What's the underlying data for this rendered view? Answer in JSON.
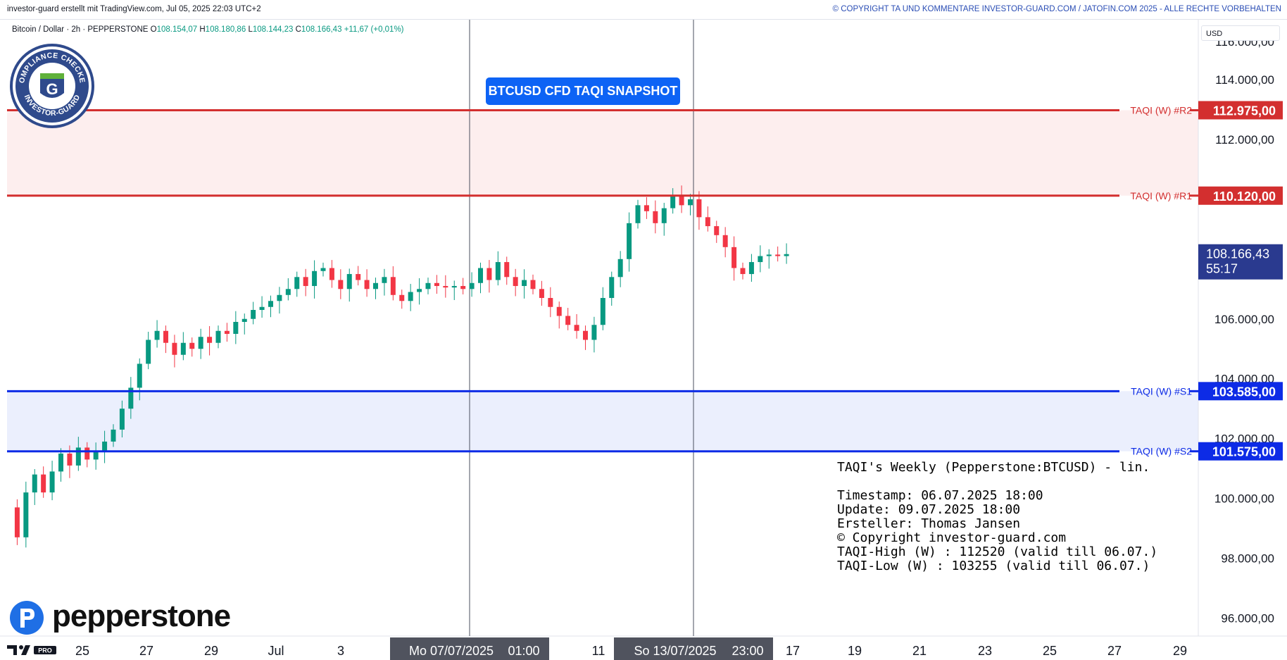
{
  "header": {
    "left_text": "investor-guard erstellt mit TradingView.com, Jul 05, 2025 22:03 UTC+2",
    "right_text": "© COPYRIGHT TA UND KOMMENTARE INVESTOR-GUARD.COM / JATOFIN.COM 2025 - ALLE RECHTE VORBEHALTEN"
  },
  "legend": {
    "symbol": "Bitcoin / Dollar · 2h · PEPPERSTONE",
    "o_label": "O",
    "o_value": "108.154,07",
    "h_label": "H",
    "h_value": "108.180,86",
    "l_label": "L",
    "l_value": "108.144,23",
    "c_label": "C",
    "c_value": "108.166,43",
    "change": "+11,67 (+0,01%)"
  },
  "badge": {
    "text_top": "COMPLIANCE CHECKED",
    "text_bottom": "INVESTOR-GUARD",
    "letter": "G"
  },
  "snapshot_label": "BTCUSD CFD TAQI SNAPSHOT",
  "info": {
    "title": "TAQI's Weekly (Pepperstone:BTCUSD) - lin.",
    "timestamp": "Timestamp: 06.07.2025 18:00",
    "update": "Update: 09.07.2025 18:00",
    "author": "Ersteller: Thomas Jansen",
    "copyright": "© Copyright investor-guard.com",
    "taqi_high": "TAQI-High (W) : 112520 (valid till 06.07.)",
    "taqi_low": "TAQI-Low (W) : 103255 (valid till 06.07.)"
  },
  "currency": "USD",
  "broker_logo": "pepperstone",
  "colors": {
    "resistance": "#d32f2f",
    "support": "#0d2be6",
    "resistance_zone": "#fdeeee",
    "support_zone": "#ebeffd",
    "up_candle": "#089981",
    "down_candle": "#f23645",
    "price_label": "#2a3a8f",
    "snapshot_bg": "#0d63f5"
  },
  "chart_data": {
    "type": "candlestick",
    "y_axis_ticks": [
      "114.000,00",
      "112.000,00",
      "106.000,00",
      "104.000,00",
      "102.000,00",
      "100.000,00",
      "98.000,00",
      "96.000,00"
    ],
    "x_axis_ticks": [
      "25",
      "27",
      "29",
      "Jul",
      "3",
      "11",
      "17",
      "19",
      "21",
      "23",
      "25",
      "27",
      "29"
    ],
    "ylim": [
      95400,
      116000
    ],
    "levels": [
      {
        "label": "TAQI (W) #R2",
        "value": 112975,
        "value_text": "112.975,00",
        "kind": "resistance"
      },
      {
        "label": "TAQI (W) #R1",
        "value": 110120,
        "value_text": "110.120,00",
        "kind": "resistance"
      },
      {
        "label": "TAQI (W) #S1",
        "value": 103585,
        "value_text": "103.585,00",
        "kind": "support"
      },
      {
        "label": "TAQI (W) #S2",
        "value": 101575,
        "value_text": "101.575,00",
        "kind": "support"
      }
    ],
    "last_price": {
      "value": 108166.43,
      "text": "108.166,43",
      "countdown": "55:17"
    },
    "vertical_markers": [
      {
        "label": "Mo 07/07/2025",
        "time": "01:00"
      },
      {
        "label": "So 13/07/2025",
        "time": "23:00"
      }
    ],
    "ohlc_path": [
      [
        0,
        99700
      ],
      [
        0.3,
        98700
      ],
      [
        0.6,
        100200
      ],
      [
        1.0,
        100800
      ],
      [
        1.4,
        100200
      ],
      [
        1.8,
        100900
      ],
      [
        2.2,
        101500
      ],
      [
        2.6,
        101100
      ],
      [
        3.0,
        101700
      ],
      [
        3.4,
        101300
      ],
      [
        3.8,
        101600
      ],
      [
        4.1,
        101900
      ],
      [
        4.4,
        102300
      ],
      [
        4.8,
        103000
      ],
      [
        5.1,
        103700
      ],
      [
        5.4,
        104500
      ],
      [
        5.7,
        105300
      ],
      [
        6.0,
        105600
      ],
      [
        6.4,
        105200
      ],
      [
        6.8,
        104800
      ],
      [
        7.2,
        105200
      ],
      [
        7.6,
        105000
      ],
      [
        8.0,
        105400
      ],
      [
        8.4,
        105200
      ],
      [
        8.8,
        105600
      ],
      [
        9.2,
        105500
      ],
      [
        9.6,
        105900
      ],
      [
        10.0,
        106000
      ],
      [
        10.5,
        106300
      ],
      [
        11.0,
        106400
      ],
      [
        11.5,
        106600
      ],
      [
        12.0,
        106800
      ],
      [
        12.5,
        107000
      ],
      [
        13.0,
        107400
      ],
      [
        13.5,
        107100
      ],
      [
        14.0,
        107600
      ],
      [
        14.5,
        107700
      ],
      [
        15.0,
        107300
      ],
      [
        15.5,
        107000
      ],
      [
        16.0,
        107500
      ],
      [
        16.5,
        107300
      ],
      [
        17.0,
        107000
      ],
      [
        17.5,
        107200
      ],
      [
        18.0,
        107400
      ],
      [
        18.5,
        106800
      ],
      [
        19.0,
        106600
      ],
      [
        19.5,
        106900
      ],
      [
        20.0,
        107000
      ],
      [
        20.5,
        107200
      ],
      [
        21.0,
        107100
      ],
      [
        21.5,
        107050
      ],
      [
        22.0,
        107100
      ],
      [
        22.5,
        107000
      ],
      [
        23.0,
        107200
      ],
      [
        23.5,
        107700
      ],
      [
        24.0,
        107300
      ],
      [
        24.5,
        107900
      ],
      [
        25.0,
        107400
      ],
      [
        25.5,
        107100
      ],
      [
        26.0,
        107300
      ],
      [
        26.5,
        107000
      ],
      [
        27.0,
        106700
      ],
      [
        27.5,
        106400
      ],
      [
        28.0,
        106100
      ],
      [
        28.5,
        105800
      ],
      [
        29.0,
        105600
      ],
      [
        29.5,
        105300
      ],
      [
        30.0,
        105800
      ],
      [
        30.5,
        106700
      ],
      [
        31.0,
        107400
      ],
      [
        31.5,
        108000
      ],
      [
        32.0,
        109200
      ],
      [
        32.5,
        109800
      ],
      [
        33.0,
        109600
      ],
      [
        33.5,
        109200
      ],
      [
        34.0,
        109700
      ],
      [
        34.5,
        110100
      ],
      [
        35.0,
        109800
      ],
      [
        35.5,
        110000
      ],
      [
        36.0,
        109400
      ],
      [
        36.5,
        109100
      ],
      [
        37.0,
        108800
      ],
      [
        37.5,
        108400
      ],
      [
        38.0,
        107700
      ],
      [
        38.5,
        107500
      ],
      [
        39.0,
        107900
      ],
      [
        39.5,
        108100
      ],
      [
        40.0,
        108150
      ],
      [
        40.5,
        108100
      ],
      [
        41.0,
        108166
      ]
    ]
  }
}
